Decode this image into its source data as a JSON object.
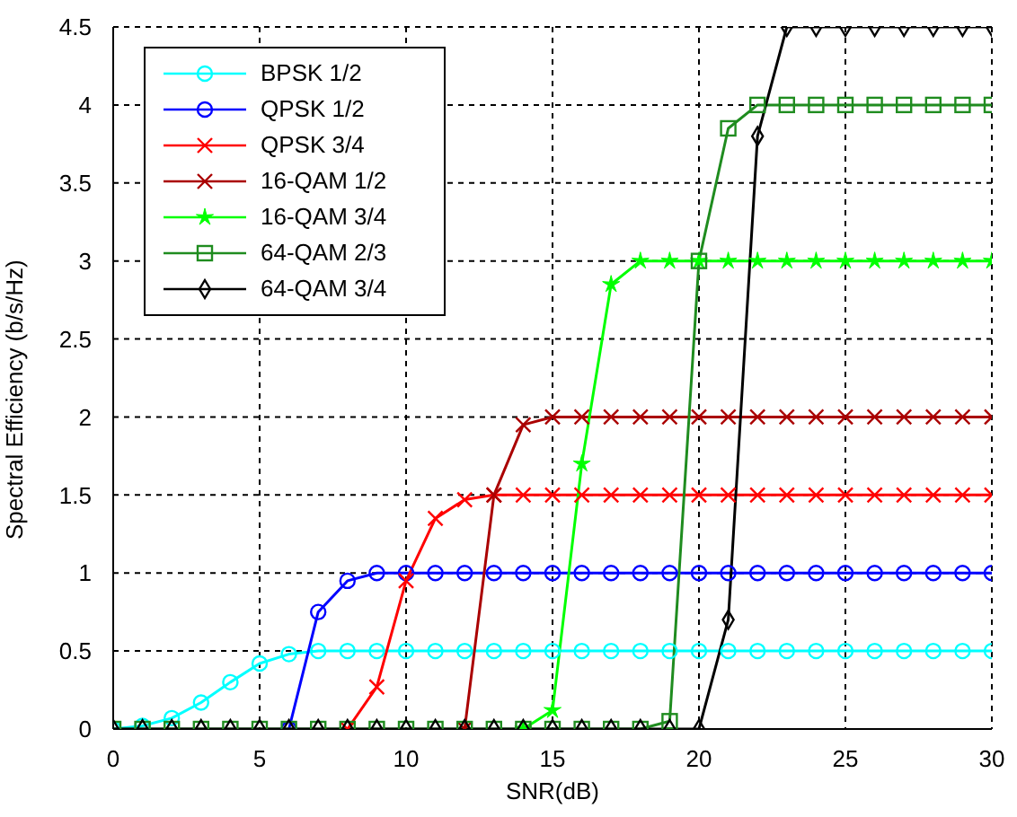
{
  "chart_data": {
    "type": "line",
    "xlabel": "SNR(dB)",
    "ylabel": "Spectral Efficiency (b/s/Hz)",
    "x": [
      0,
      1,
      2,
      3,
      4,
      5,
      6,
      7,
      8,
      9,
      10,
      11,
      12,
      13,
      14,
      15,
      16,
      17,
      18,
      19,
      20,
      21,
      22,
      23,
      24,
      25,
      26,
      27,
      28,
      29,
      30
    ],
    "series": [
      {
        "name": "BPSK 1/2",
        "color": "#00ffff",
        "marker": "circle",
        "values": [
          0,
          0.02,
          0.07,
          0.17,
          0.3,
          0.42,
          0.48,
          0.5,
          0.5,
          0.5,
          0.5,
          0.5,
          0.5,
          0.5,
          0.5,
          0.5,
          0.5,
          0.5,
          0.5,
          0.5,
          0.5,
          0.5,
          0.5,
          0.5,
          0.5,
          0.5,
          0.5,
          0.5,
          0.5,
          0.5,
          0.5
        ]
      },
      {
        "name": "QPSK 1/2",
        "color": "#0000ff",
        "marker": "circle",
        "values": [
          null,
          null,
          null,
          null,
          null,
          null,
          0,
          0.75,
          0.95,
          1,
          1,
          1,
          1,
          1,
          1,
          1,
          1,
          1,
          1,
          1,
          1,
          1,
          1,
          1,
          1,
          1,
          1,
          1,
          1,
          1,
          1
        ]
      },
      {
        "name": "QPSK 3/4",
        "color": "#ff0000",
        "marker": "cross",
        "values": [
          null,
          null,
          null,
          null,
          null,
          null,
          null,
          null,
          0,
          0.27,
          0.95,
          1.35,
          1.47,
          1.5,
          1.5,
          1.5,
          1.5,
          1.5,
          1.5,
          1.5,
          1.5,
          1.5,
          1.5,
          1.5,
          1.5,
          1.5,
          1.5,
          1.5,
          1.5,
          1.5,
          1.5
        ]
      },
      {
        "name": "16-QAM 1/2",
        "color": "#aa0000",
        "marker": "cross",
        "values": [
          null,
          null,
          null,
          null,
          null,
          null,
          null,
          null,
          null,
          null,
          null,
          null,
          0,
          1.5,
          1.95,
          2,
          2,
          2,
          2,
          2,
          2,
          2,
          2,
          2,
          2,
          2,
          2,
          2,
          2,
          2,
          2
        ]
      },
      {
        "name": "16-QAM 3/4",
        "color": "#00ff00",
        "marker": "star",
        "values": [
          null,
          null,
          null,
          null,
          null,
          null,
          null,
          null,
          null,
          null,
          null,
          null,
          null,
          null,
          0,
          0.12,
          1.7,
          2.85,
          3,
          3,
          3,
          3,
          3,
          3,
          3,
          3,
          3,
          3,
          3,
          3,
          3
        ]
      },
      {
        "name": "64-QAM 2/3",
        "color": "#1f8c1f",
        "marker": "square",
        "values": [
          0,
          0,
          0,
          0,
          0,
          0,
          0,
          0,
          0,
          0,
          0,
          0,
          0,
          0,
          0,
          0,
          0,
          0,
          0,
          0.05,
          3,
          3.85,
          4,
          4,
          4,
          4,
          4,
          4,
          4,
          4,
          4
        ]
      },
      {
        "name": "64-QAM 3/4",
        "color": "#000000",
        "marker": "diamond",
        "values": [
          0,
          0,
          0,
          0,
          0,
          0,
          0,
          0,
          0,
          0,
          0,
          0,
          0,
          0,
          0,
          0,
          0,
          0,
          0,
          0,
          0,
          0.7,
          3.8,
          4.5,
          4.5,
          4.5,
          4.5,
          4.5,
          4.5,
          4.5,
          4.5
        ]
      }
    ],
    "xlim": [
      0,
      30
    ],
    "xticks": [
      0,
      5,
      10,
      15,
      20,
      25,
      30
    ],
    "ylim": [
      0,
      4.5
    ],
    "yticks": [
      0,
      0.5,
      1,
      1.5,
      2,
      2.5,
      3,
      3.5,
      4,
      4.5
    ],
    "grid": true,
    "legend": "top left"
  }
}
